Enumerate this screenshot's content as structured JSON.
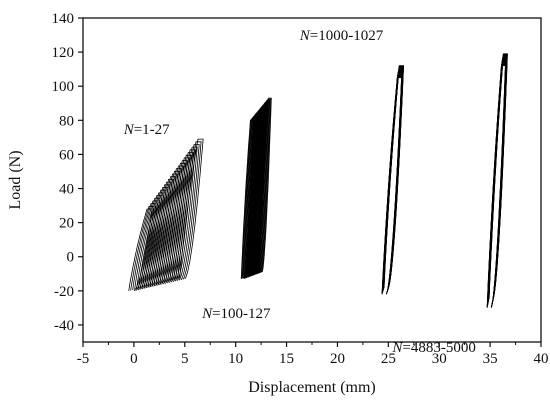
{
  "chart_data": {
    "type": "line",
    "title": "",
    "xlabel": "Displacement (mm)",
    "ylabel": "Load (N)",
    "xlim": [
      -5,
      40
    ],
    "ylim": [
      -50,
      140
    ],
    "xticks": [
      -5,
      0,
      5,
      10,
      15,
      20,
      25,
      30,
      35,
      40
    ],
    "yticks": [
      -40,
      -20,
      0,
      20,
      40,
      60,
      80,
      100,
      120,
      140
    ],
    "grid": false,
    "series": [
      {
        "cycles": "1-27",
        "loops": 27,
        "x_start": [
          0.0,
          5.0
        ],
        "x_span": 1.8,
        "y_min": [
          -20,
          -13
        ],
        "y_max": [
          28,
          69
        ]
      },
      {
        "cycles": "100-127",
        "loops": 27,
        "x_start": [
          10.8,
          12.6
        ],
        "x_span": 0.9,
        "y_min": [
          -13,
          -9
        ],
        "y_max": [
          80,
          93
        ]
      },
      {
        "cycles": "1000-1027",
        "loops": 27,
        "x_start": [
          24.8,
          25.0
        ],
        "x_span": 1.5,
        "y_min": [
          -22,
          -18
        ],
        "y_max": [
          105,
          112
        ]
      },
      {
        "cycles": "4883-5000",
        "loops": 27,
        "x_start": [
          35.1,
          35.3
        ],
        "x_span": 1.4,
        "y_min": [
          -30,
          -24
        ],
        "y_max": [
          112,
          119
        ]
      }
    ],
    "annotations": [
      {
        "italic": "N",
        "text": "=1-27",
        "x": -1.0,
        "y": 72
      },
      {
        "italic": "N",
        "text": "=100-127",
        "x": 6.7,
        "y": -36
      },
      {
        "italic": "N",
        "text": "=1000-1027",
        "x": 16.3,
        "y": 127
      },
      {
        "italic": "N",
        "text": "=4883-5000",
        "x": 25.4,
        "y": -56
      }
    ],
    "color": "#000000"
  }
}
